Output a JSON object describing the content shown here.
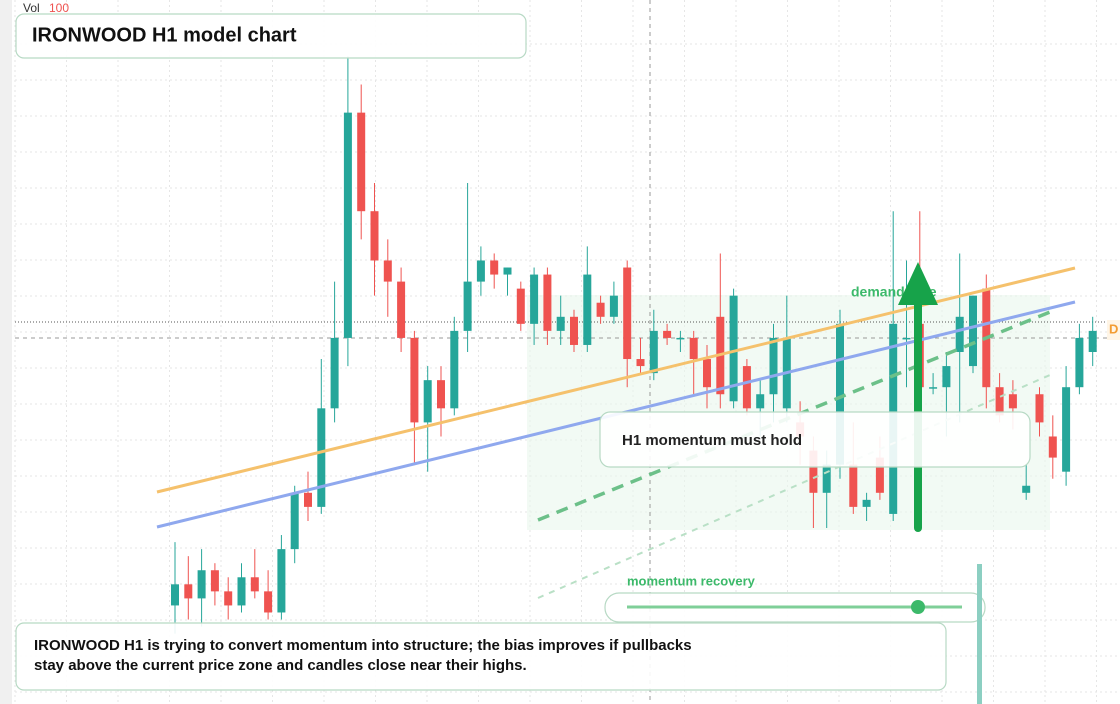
{
  "chart_data": {
    "type": "candlestick",
    "title": "IRONWOOD H1 model chart",
    "volume_label": "Vol",
    "volume_value": "100",
    "price_tag": "D",
    "annotations": [
      "demand side",
      "H1 momentum must hold",
      "momentum recovery"
    ],
    "description": "IRONWOOD H1 is trying to convert momentum into structure; the bias improves if pullbacks stay above the current price zone and candles close near their highs.",
    "up_color": "#26a69a",
    "down_color": "#ef5350",
    "ylim": [
      0,
      100
    ],
    "candles": [
      [
        14,
        23,
        10,
        17
      ],
      [
        17,
        21,
        12,
        15
      ],
      [
        15,
        22,
        11,
        19
      ],
      [
        19,
        20,
        14,
        16
      ],
      [
        16,
        18,
        12,
        14
      ],
      [
        14,
        20,
        13,
        18
      ],
      [
        18,
        22,
        15,
        16
      ],
      [
        16,
        19,
        12,
        13
      ],
      [
        13,
        24,
        12,
        22
      ],
      [
        22,
        31,
        20,
        30
      ],
      [
        30,
        33,
        26,
        28
      ],
      [
        28,
        49,
        27,
        42
      ],
      [
        42,
        60,
        40,
        52
      ],
      [
        52,
        92,
        48,
        84
      ],
      [
        84,
        88,
        66,
        70
      ],
      [
        70,
        74,
        58,
        63
      ],
      [
        63,
        66,
        55,
        60
      ],
      [
        60,
        62,
        50,
        52
      ],
      [
        52,
        53,
        34,
        40
      ],
      [
        40,
        48,
        33,
        46
      ],
      [
        46,
        48,
        38,
        42
      ],
      [
        42,
        55,
        41,
        53
      ],
      [
        53,
        74,
        50,
        60
      ],
      [
        60,
        65,
        58,
        63
      ],
      [
        63,
        64,
        59,
        61
      ],
      [
        61,
        62,
        58,
        62
      ],
      [
        59,
        60,
        53,
        54
      ],
      [
        54,
        62,
        51,
        61
      ],
      [
        61,
        62,
        51,
        53
      ],
      [
        53,
        58,
        51,
        55
      ],
      [
        55,
        56,
        50,
        51
      ],
      [
        51,
        65,
        50,
        61
      ],
      [
        57,
        58,
        54,
        55
      ],
      [
        55,
        60,
        54,
        58
      ],
      [
        62,
        63,
        45,
        49
      ],
      [
        49,
        52,
        47,
        48
      ],
      [
        47,
        56,
        46,
        53
      ],
      [
        53,
        54,
        51,
        52
      ],
      [
        52,
        53,
        50,
        52
      ],
      [
        52,
        53,
        44,
        49
      ],
      [
        49,
        51,
        42,
        45
      ],
      [
        55,
        64,
        42,
        44
      ],
      [
        43,
        59,
        42,
        58
      ],
      [
        48,
        49,
        41,
        42
      ],
      [
        42,
        46,
        38,
        44
      ],
      [
        44,
        54,
        40,
        52
      ],
      [
        42,
        58,
        40,
        52
      ],
      [
        40,
        43,
        34,
        38
      ],
      [
        36,
        38,
        25,
        30
      ],
      [
        30,
        36,
        25,
        34
      ],
      [
        34,
        56,
        32,
        54
      ],
      [
        34,
        40,
        27,
        28
      ],
      [
        28,
        30,
        26,
        29
      ],
      [
        35,
        38,
        29,
        30
      ],
      [
        27,
        70,
        26,
        54
      ],
      [
        52,
        63,
        45,
        52
      ],
      [
        54,
        70,
        44,
        45
      ],
      [
        45,
        47,
        44,
        45
      ],
      [
        45,
        50,
        38,
        48
      ],
      [
        50,
        64,
        40,
        55
      ],
      [
        48,
        58,
        47,
        58
      ],
      [
        59,
        61,
        42,
        45
      ],
      [
        45,
        47,
        40,
        41
      ],
      [
        44,
        46,
        39,
        42
      ],
      [
        30,
        34,
        29,
        31
      ],
      [
        44,
        45,
        38,
        40
      ],
      [
        38,
        41,
        32,
        35
      ],
      [
        33,
        48,
        31,
        45
      ],
      [
        45,
        54,
        44,
        52
      ],
      [
        50,
        55,
        48,
        53
      ]
    ]
  }
}
